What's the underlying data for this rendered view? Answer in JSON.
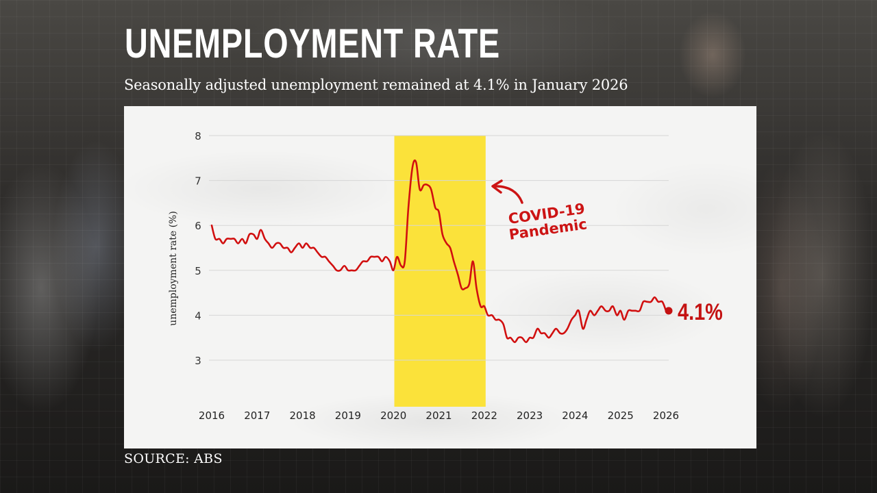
{
  "header": {
    "title": "UNEMPLOYMENT RATE",
    "subtitle": "Seasonally adjusted unemployment remained at 4.1% in January 2026"
  },
  "footer": {
    "source": "SOURCE: ABS"
  },
  "annotation": {
    "line1": "COVID-19",
    "line2": "Pandemic",
    "end_label": "4.1%"
  },
  "colors": {
    "line": "#d10f0f",
    "highlight": "#fbe23a",
    "paper": "#f4f4f3",
    "gridline": "#d6d6d6"
  },
  "chart_data": {
    "type": "line",
    "title": "UNEMPLOYMENT RATE",
    "subtitle": "Seasonally adjusted unemployment remained at 4.1% in January 2026",
    "xlabel": "",
    "ylabel": "unemployment rate (%)",
    "ylim": [
      3,
      8
    ],
    "yticks": [
      3,
      4,
      5,
      6,
      7,
      8
    ],
    "xticks": [
      "2016",
      "2017",
      "2018",
      "2019",
      "2020",
      "2021",
      "2022",
      "2023",
      "2024",
      "2025",
      "2026"
    ],
    "grid": "horizontal",
    "legend": "none",
    "highlight_region": {
      "x_start": 2020.05,
      "x_end": 2022.0,
      "label": "COVID-19 Pandemic"
    },
    "end_annotation": "4.1%",
    "source": "SOURCE: ABS",
    "series": [
      {
        "name": "Unemployment rate (seasonally adjusted)",
        "x": [
          2016.0,
          2016.08,
          2016.17,
          2016.25,
          2016.33,
          2016.42,
          2016.5,
          2016.58,
          2016.67,
          2016.75,
          2016.83,
          2016.92,
          2017.0,
          2017.08,
          2017.17,
          2017.25,
          2017.33,
          2017.42,
          2017.5,
          2017.58,
          2017.67,
          2017.75,
          2017.83,
          2017.92,
          2018.0,
          2018.08,
          2018.17,
          2018.25,
          2018.33,
          2018.42,
          2018.5,
          2018.58,
          2018.67,
          2018.75,
          2018.83,
          2018.92,
          2019.0,
          2019.08,
          2019.17,
          2019.25,
          2019.33,
          2019.42,
          2019.5,
          2019.58,
          2019.67,
          2019.75,
          2019.83,
          2019.92,
          2020.0,
          2020.08,
          2020.17,
          2020.25,
          2020.33,
          2020.42,
          2020.5,
          2020.58,
          2020.67,
          2020.75,
          2020.83,
          2020.92,
          2021.0,
          2021.08,
          2021.17,
          2021.25,
          2021.33,
          2021.42,
          2021.5,
          2021.58,
          2021.67,
          2021.75,
          2021.83,
          2021.92,
          2022.0,
          2022.08,
          2022.17,
          2022.25,
          2022.33,
          2022.42,
          2022.5,
          2022.58,
          2022.67,
          2022.75,
          2022.83,
          2022.92,
          2023.0,
          2023.08,
          2023.17,
          2023.25,
          2023.33,
          2023.42,
          2023.5,
          2023.58,
          2023.67,
          2023.75,
          2023.83,
          2023.92,
          2024.0,
          2024.08,
          2024.17,
          2024.25,
          2024.33,
          2024.42,
          2024.5,
          2024.58,
          2024.67,
          2024.75,
          2024.83,
          2024.92,
          2025.0,
          2025.08,
          2025.17,
          2025.25,
          2025.33,
          2025.42,
          2025.5,
          2025.58,
          2025.67,
          2025.75,
          2025.83,
          2025.92,
          2026.0
        ],
        "values": [
          6.0,
          5.7,
          5.7,
          5.6,
          5.7,
          5.7,
          5.7,
          5.6,
          5.7,
          5.6,
          5.8,
          5.8,
          5.7,
          5.9,
          5.7,
          5.6,
          5.5,
          5.6,
          5.6,
          5.5,
          5.5,
          5.4,
          5.5,
          5.6,
          5.5,
          5.6,
          5.5,
          5.5,
          5.4,
          5.3,
          5.3,
          5.2,
          5.1,
          5.0,
          5.0,
          5.1,
          5.0,
          5.0,
          5.0,
          5.1,
          5.2,
          5.2,
          5.3,
          5.3,
          5.3,
          5.2,
          5.3,
          5.2,
          5.0,
          5.3,
          5.1,
          5.2,
          6.4,
          7.3,
          7.4,
          6.8,
          6.9,
          6.9,
          6.8,
          6.4,
          6.3,
          5.8,
          5.6,
          5.5,
          5.2,
          4.9,
          4.6,
          4.6,
          4.7,
          5.2,
          4.6,
          4.2,
          4.2,
          4.0,
          4.0,
          3.9,
          3.9,
          3.8,
          3.5,
          3.5,
          3.4,
          3.5,
          3.5,
          3.4,
          3.5,
          3.5,
          3.7,
          3.6,
          3.6,
          3.5,
          3.6,
          3.7,
          3.6,
          3.6,
          3.7,
          3.9,
          4.0,
          4.1,
          3.7,
          3.9,
          4.1,
          4.0,
          4.1,
          4.2,
          4.1,
          4.1,
          4.2,
          4.0,
          4.1,
          3.9,
          4.1,
          4.1,
          4.1,
          4.1,
          4.3,
          4.3,
          4.3,
          4.4,
          4.3,
          4.3,
          4.1
        ]
      }
    ]
  }
}
